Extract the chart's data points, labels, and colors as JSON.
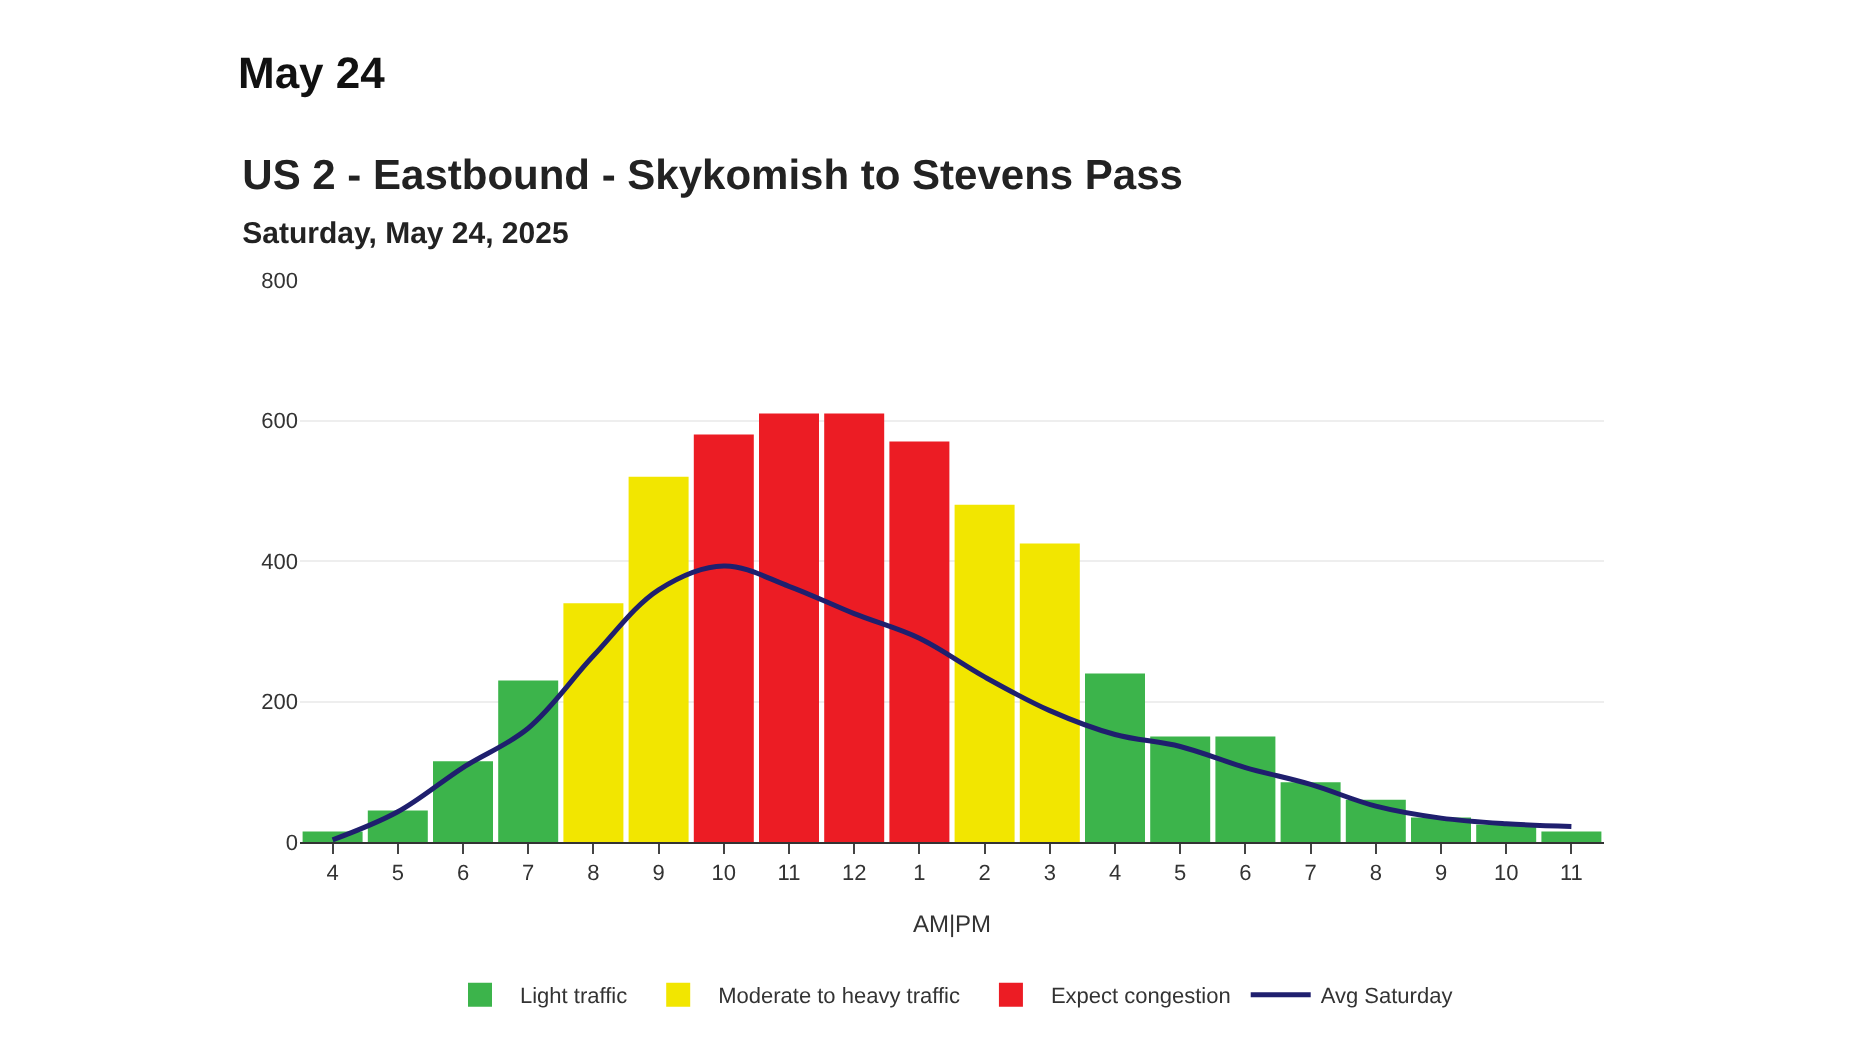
{
  "chart_data": {
    "type": "bar",
    "title": "US 2 - Eastbound - Skykomish to Stevens Pass",
    "subtitle": "Saturday, May 24, 2025",
    "annotations": [
      "May 24"
    ],
    "xlabel": "AM|PM",
    "categories": [
      "4",
      "5",
      "6",
      "7",
      "8",
      "9",
      "10",
      "11",
      "12",
      "1",
      "2",
      "3",
      "4",
      "5",
      "6",
      "7",
      "8",
      "9",
      "10",
      "11"
    ],
    "series": [
      {
        "name": "Light traffic",
        "color": "#3cb44b",
        "values": [
          15,
          45,
          115,
          230,
          null,
          null,
          null,
          null,
          null,
          null,
          null,
          null,
          240,
          150,
          150,
          85,
          60,
          35,
          25,
          15
        ]
      },
      {
        "name": "Moderate to heavy traffic",
        "color": "#f2e600",
        "values": [
          null,
          null,
          null,
          null,
          340,
          520,
          null,
          null,
          null,
          null,
          480,
          425,
          null,
          null,
          null,
          null,
          null,
          null,
          null,
          null
        ]
      },
      {
        "name": "Expect congestion",
        "color": "#ec1c24",
        "values": [
          null,
          null,
          null,
          null,
          null,
          null,
          580,
          610,
          610,
          570,
          null,
          null,
          null,
          null,
          null,
          null,
          null,
          null,
          null,
          null
        ]
      },
      {
        "name": "Avg Saturday",
        "type": "line",
        "color": "#1f1f6e",
        "values": [
          3,
          43,
          106,
          162,
          265,
          359,
          393,
          364,
          325,
          290,
          235,
          187,
          153,
          136,
          106,
          82,
          51,
          34,
          26,
          22
        ]
      }
    ],
    "ylim": [
      0,
      800
    ],
    "yticks": [
      0,
      200,
      400,
      600,
      800
    ],
    "grid": "y",
    "legend": "bottom",
    "marker": "none"
  }
}
